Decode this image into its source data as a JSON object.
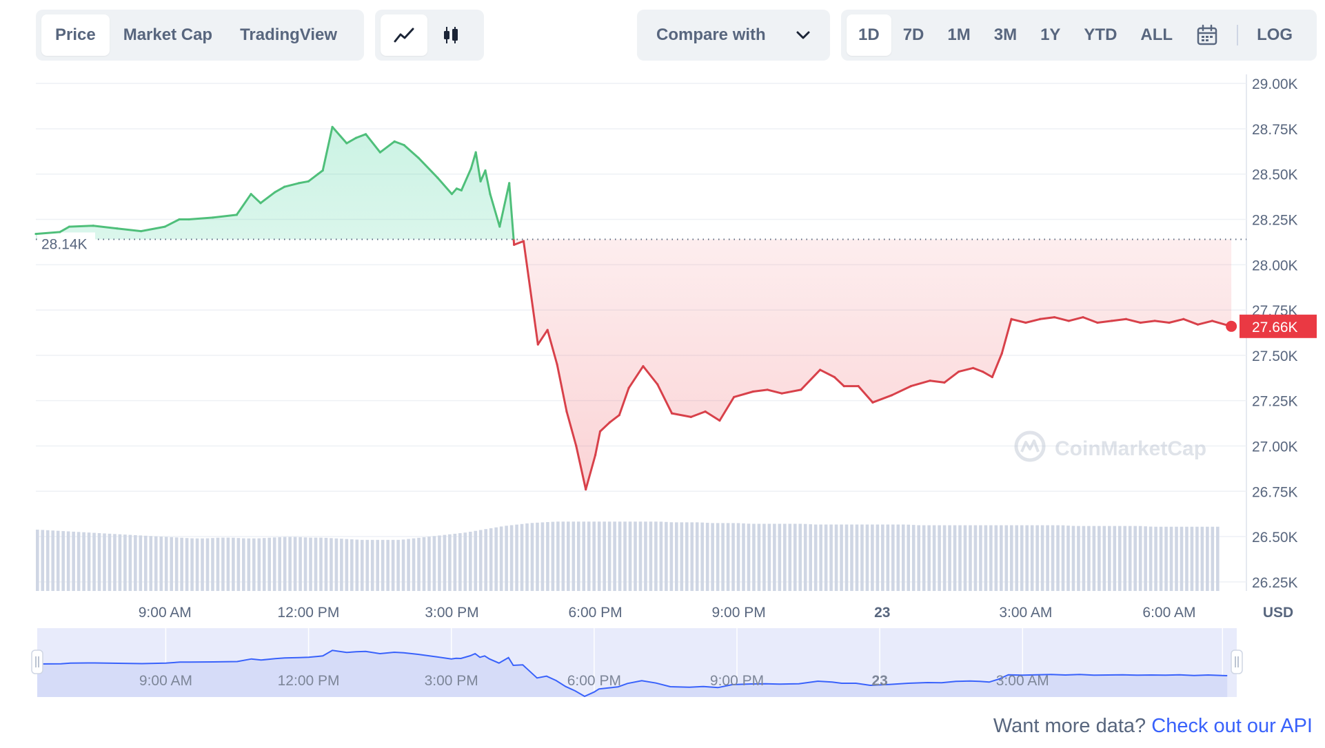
{
  "toolbar": {
    "metric_tabs": [
      "Price",
      "Market Cap",
      "TradingView"
    ],
    "active_metric": "Price",
    "chart_types": [
      {
        "icon": "line-chart-icon",
        "active": true
      },
      {
        "icon": "candlestick-icon",
        "active": false
      }
    ],
    "compare_label": "Compare with",
    "range_tabs": [
      "1D",
      "7D",
      "1M",
      "3M",
      "1Y",
      "YTD",
      "ALL"
    ],
    "active_range": "1D",
    "calendar_icon": "calendar-icon",
    "log_label": "LOG"
  },
  "colors": {
    "up": "#16c784",
    "up_line": "#4fbf7a",
    "down": "#ea3943",
    "down_line": "#d8414a",
    "navigator_line": "#3861fb",
    "link": "#3861fb",
    "text": "#58667e"
  },
  "watermark": "CoinMarketCap",
  "footer": {
    "text": "Want more data?",
    "link": "Check out our API"
  },
  "chart_data": {
    "type": "line",
    "title": "",
    "xlabel": "",
    "ylabel": "",
    "currency_label": "USD",
    "ylim": [
      26200,
      29050
    ],
    "y_ticks": [
      {
        "value": 29000,
        "label": "29.00K"
      },
      {
        "value": 28750,
        "label": "28.75K"
      },
      {
        "value": 28500,
        "label": "28.50K"
      },
      {
        "value": 28250,
        "label": "28.25K"
      },
      {
        "value": 28000,
        "label": "28.00K"
      },
      {
        "value": 27750,
        "label": "27.75K"
      },
      {
        "value": 27500,
        "label": "27.50K"
      },
      {
        "value": 27250,
        "label": "27.25K"
      },
      {
        "value": 27000,
        "label": "27.00K"
      },
      {
        "value": 26750,
        "label": "26.75K"
      },
      {
        "value": 26500,
        "label": "26.50K"
      },
      {
        "value": 26250,
        "label": "26.25K"
      }
    ],
    "xlim": [
      6.3,
      31.5
    ],
    "x_ticks": [
      {
        "hour": 9,
        "label": "9:00 AM"
      },
      {
        "hour": 12,
        "label": "12:00 PM"
      },
      {
        "hour": 15,
        "label": "3:00 PM"
      },
      {
        "hour": 18,
        "label": "6:00 PM"
      },
      {
        "hour": 21,
        "label": "9:00 PM"
      },
      {
        "hour": 24,
        "label": "23",
        "bold": true
      },
      {
        "hour": 27,
        "label": "3:00 AM"
      },
      {
        "hour": 30,
        "label": "6:00 AM"
      }
    ],
    "reference_price": 28140,
    "reference_label": "28.14K",
    "current_price": 27660,
    "current_label": "27.66K",
    "x": [
      6.3,
      6.8,
      7.0,
      7.5,
      8.0,
      8.5,
      9.0,
      9.3,
      9.5,
      10.0,
      10.5,
      10.8,
      11.0,
      11.3,
      11.5,
      11.8,
      12.0,
      12.2,
      12.3,
      12.5,
      12.8,
      13.0,
      13.2,
      13.5,
      13.8,
      14.0,
      14.3,
      14.7,
      15.0,
      15.1,
      15.2,
      15.4,
      15.5,
      15.6,
      15.7,
      15.8,
      16.0,
      16.2,
      16.3,
      16.5,
      16.8,
      17.0,
      17.2,
      17.4,
      17.6,
      17.8,
      18.0,
      18.1,
      18.3,
      18.5,
      18.7,
      19.0,
      19.3,
      19.6,
      20.0,
      20.3,
      20.6,
      20.9,
      21.3,
      21.6,
      21.9,
      22.3,
      22.7,
      23.0,
      23.2,
      23.5,
      23.8,
      24.2,
      24.6,
      25.0,
      25.3,
      25.6,
      25.9,
      26.1,
      26.3,
      26.5,
      26.7,
      27.0,
      27.3,
      27.6,
      27.9,
      28.2,
      28.5,
      28.8,
      29.1,
      29.4,
      29.7,
      30.0,
      30.3,
      30.6,
      30.9,
      31.3
    ],
    "values": [
      28170,
      28180,
      28210,
      28215,
      28200,
      28185,
      28210,
      28250,
      28250,
      28260,
      28275,
      28390,
      28340,
      28400,
      28430,
      28450,
      28460,
      28500,
      28520,
      28760,
      28670,
      28700,
      28720,
      28620,
      28680,
      28660,
      28590,
      28480,
      28390,
      28420,
      28410,
      28530,
      28620,
      28460,
      28520,
      28390,
      28210,
      28450,
      28110,
      28130,
      27560,
      27640,
      27450,
      27190,
      27000,
      26760,
      26950,
      27080,
      27130,
      27170,
      27320,
      27440,
      27340,
      27180,
      27160,
      27190,
      27140,
      27270,
      27300,
      27310,
      27290,
      27310,
      27420,
      27380,
      27330,
      27330,
      27240,
      27280,
      27330,
      27360,
      27350,
      27410,
      27430,
      27410,
      27380,
      27510,
      27700,
      27680,
      27700,
      27710,
      27690,
      27710,
      27680,
      27690,
      27700,
      27680,
      27690,
      27680,
      27700,
      27670,
      27690,
      27660
    ],
    "volume_note": "volume bars shown at the bottom of the chart, no numeric scale printed",
    "volume": [
      0.84,
      0.83,
      0.82,
      0.81,
      0.8,
      0.79,
      0.78,
      0.77,
      0.76,
      0.75,
      0.74,
      0.73,
      0.72,
      0.72,
      0.73,
      0.73,
      0.72,
      0.72,
      0.73,
      0.74,
      0.74,
      0.73,
      0.73,
      0.72,
      0.71,
      0.7,
      0.7,
      0.7,
      0.7,
      0.72,
      0.74,
      0.76,
      0.78,
      0.8,
      0.83,
      0.86,
      0.89,
      0.91,
      0.93,
      0.94,
      0.95,
      0.95,
      0.95,
      0.95,
      0.95,
      0.95,
      0.95,
      0.95,
      0.95,
      0.94,
      0.94,
      0.94,
      0.93,
      0.93,
      0.93,
      0.92,
      0.92,
      0.92,
      0.92,
      0.92,
      0.91,
      0.91,
      0.91,
      0.91,
      0.91,
      0.91,
      0.91,
      0.91,
      0.9,
      0.9,
      0.9,
      0.9,
      0.9,
      0.9,
      0.9,
      0.9,
      0.9,
      0.9,
      0.9,
      0.9,
      0.89,
      0.89,
      0.89,
      0.89,
      0.89,
      0.89,
      0.88,
      0.88,
      0.88,
      0.88,
      0.88,
      0.88
    ],
    "navigator": {
      "x_ticks": [
        {
          "hour": 9,
          "label": "9:00 AM"
        },
        {
          "hour": 12,
          "label": "12:00 PM"
        },
        {
          "hour": 15,
          "label": "3:00 PM"
        },
        {
          "hour": 18,
          "label": "6:00 PM"
        },
        {
          "hour": 21,
          "label": "9:00 PM"
        },
        {
          "hour": 24,
          "label": "23",
          "bold": true
        },
        {
          "hour": 27,
          "label": "3:00 AM"
        }
      ]
    }
  }
}
